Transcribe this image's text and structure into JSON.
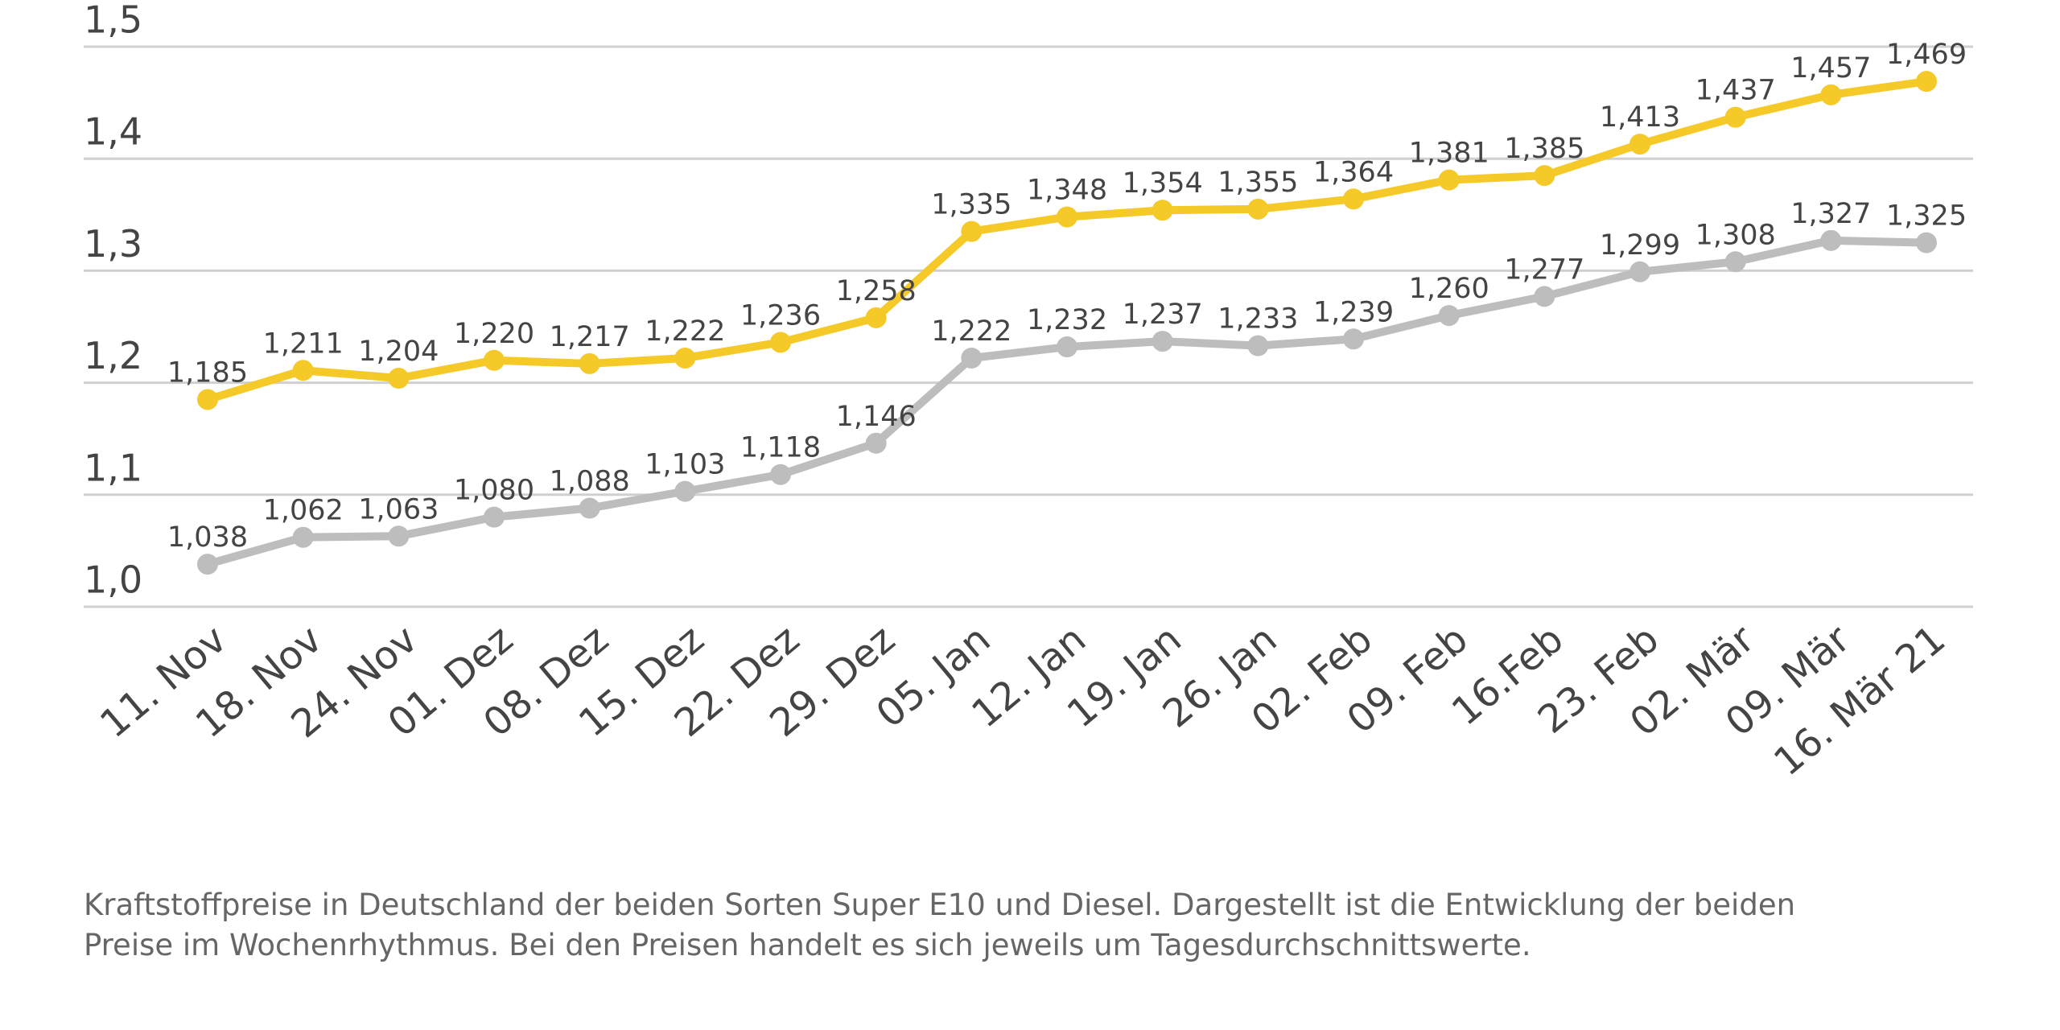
{
  "chart_data": {
    "type": "line",
    "categories": [
      "11. Nov",
      "18. Nov",
      "24. Nov",
      "01. Dez",
      "08. Dez",
      "15. Dez",
      "22. Dez",
      "29. Dez",
      "05. Jan",
      "12. Jan",
      "19. Jan",
      "26. Jan",
      "02. Feb",
      "09. Feb",
      "16.Feb",
      "23. Feb",
      "02. Mär",
      "09. Mär",
      "16. Mär 21"
    ],
    "series": [
      {
        "color": "#f5c928",
        "values": [
          1.185,
          1.211,
          1.204,
          1.22,
          1.217,
          1.222,
          1.236,
          1.258,
          1.335,
          1.348,
          1.354,
          1.355,
          1.364,
          1.381,
          1.385,
          1.413,
          1.437,
          1.457,
          1.469
        ],
        "value_labels": [
          "1,185",
          "1,211",
          "1,204",
          "1,220",
          "1,217",
          "1,222",
          "1,236",
          "1,258",
          "1,335",
          "1,348",
          "1,354",
          "1,355",
          "1,364",
          "1,381",
          "1,385",
          "1,413",
          "1,437",
          "1,457",
          "1,469"
        ]
      },
      {
        "color": "#bdbdbd",
        "values": [
          1.038,
          1.062,
          1.063,
          1.08,
          1.088,
          1.103,
          1.118,
          1.146,
          1.222,
          1.232,
          1.237,
          1.233,
          1.239,
          1.26,
          1.277,
          1.299,
          1.308,
          1.327,
          1.325
        ],
        "value_labels": [
          "1,038",
          "1,062",
          "1,063",
          "1,080",
          "1,088",
          "1,103",
          "1,118",
          "1,146",
          "1,222",
          "1,232",
          "1,237",
          "1,233",
          "1,239",
          "1,260",
          "1,277",
          "1,299",
          "1,308",
          "1,327",
          "1,325"
        ]
      }
    ],
    "ylim": [
      1.0,
      1.5
    ],
    "yticks": [
      {
        "value": 1.0,
        "label": "1,0"
      },
      {
        "value": 1.1,
        "label": "1,1"
      },
      {
        "value": 1.2,
        "label": "1,2"
      },
      {
        "value": 1.3,
        "label": "1,3"
      },
      {
        "value": 1.4,
        "label": "1,4"
      },
      {
        "value": 1.5,
        "label": "1,5"
      }
    ],
    "grid": true,
    "caption": "Kraftstoffpreise in Deutschland der beiden Sorten Super E10 und Diesel. Dargestellt ist die Entwicklung der beiden Preise im Wochenrhythmus. Bei den Preisen handelt es sich jeweils um Tagesdurchschnittswerte."
  }
}
